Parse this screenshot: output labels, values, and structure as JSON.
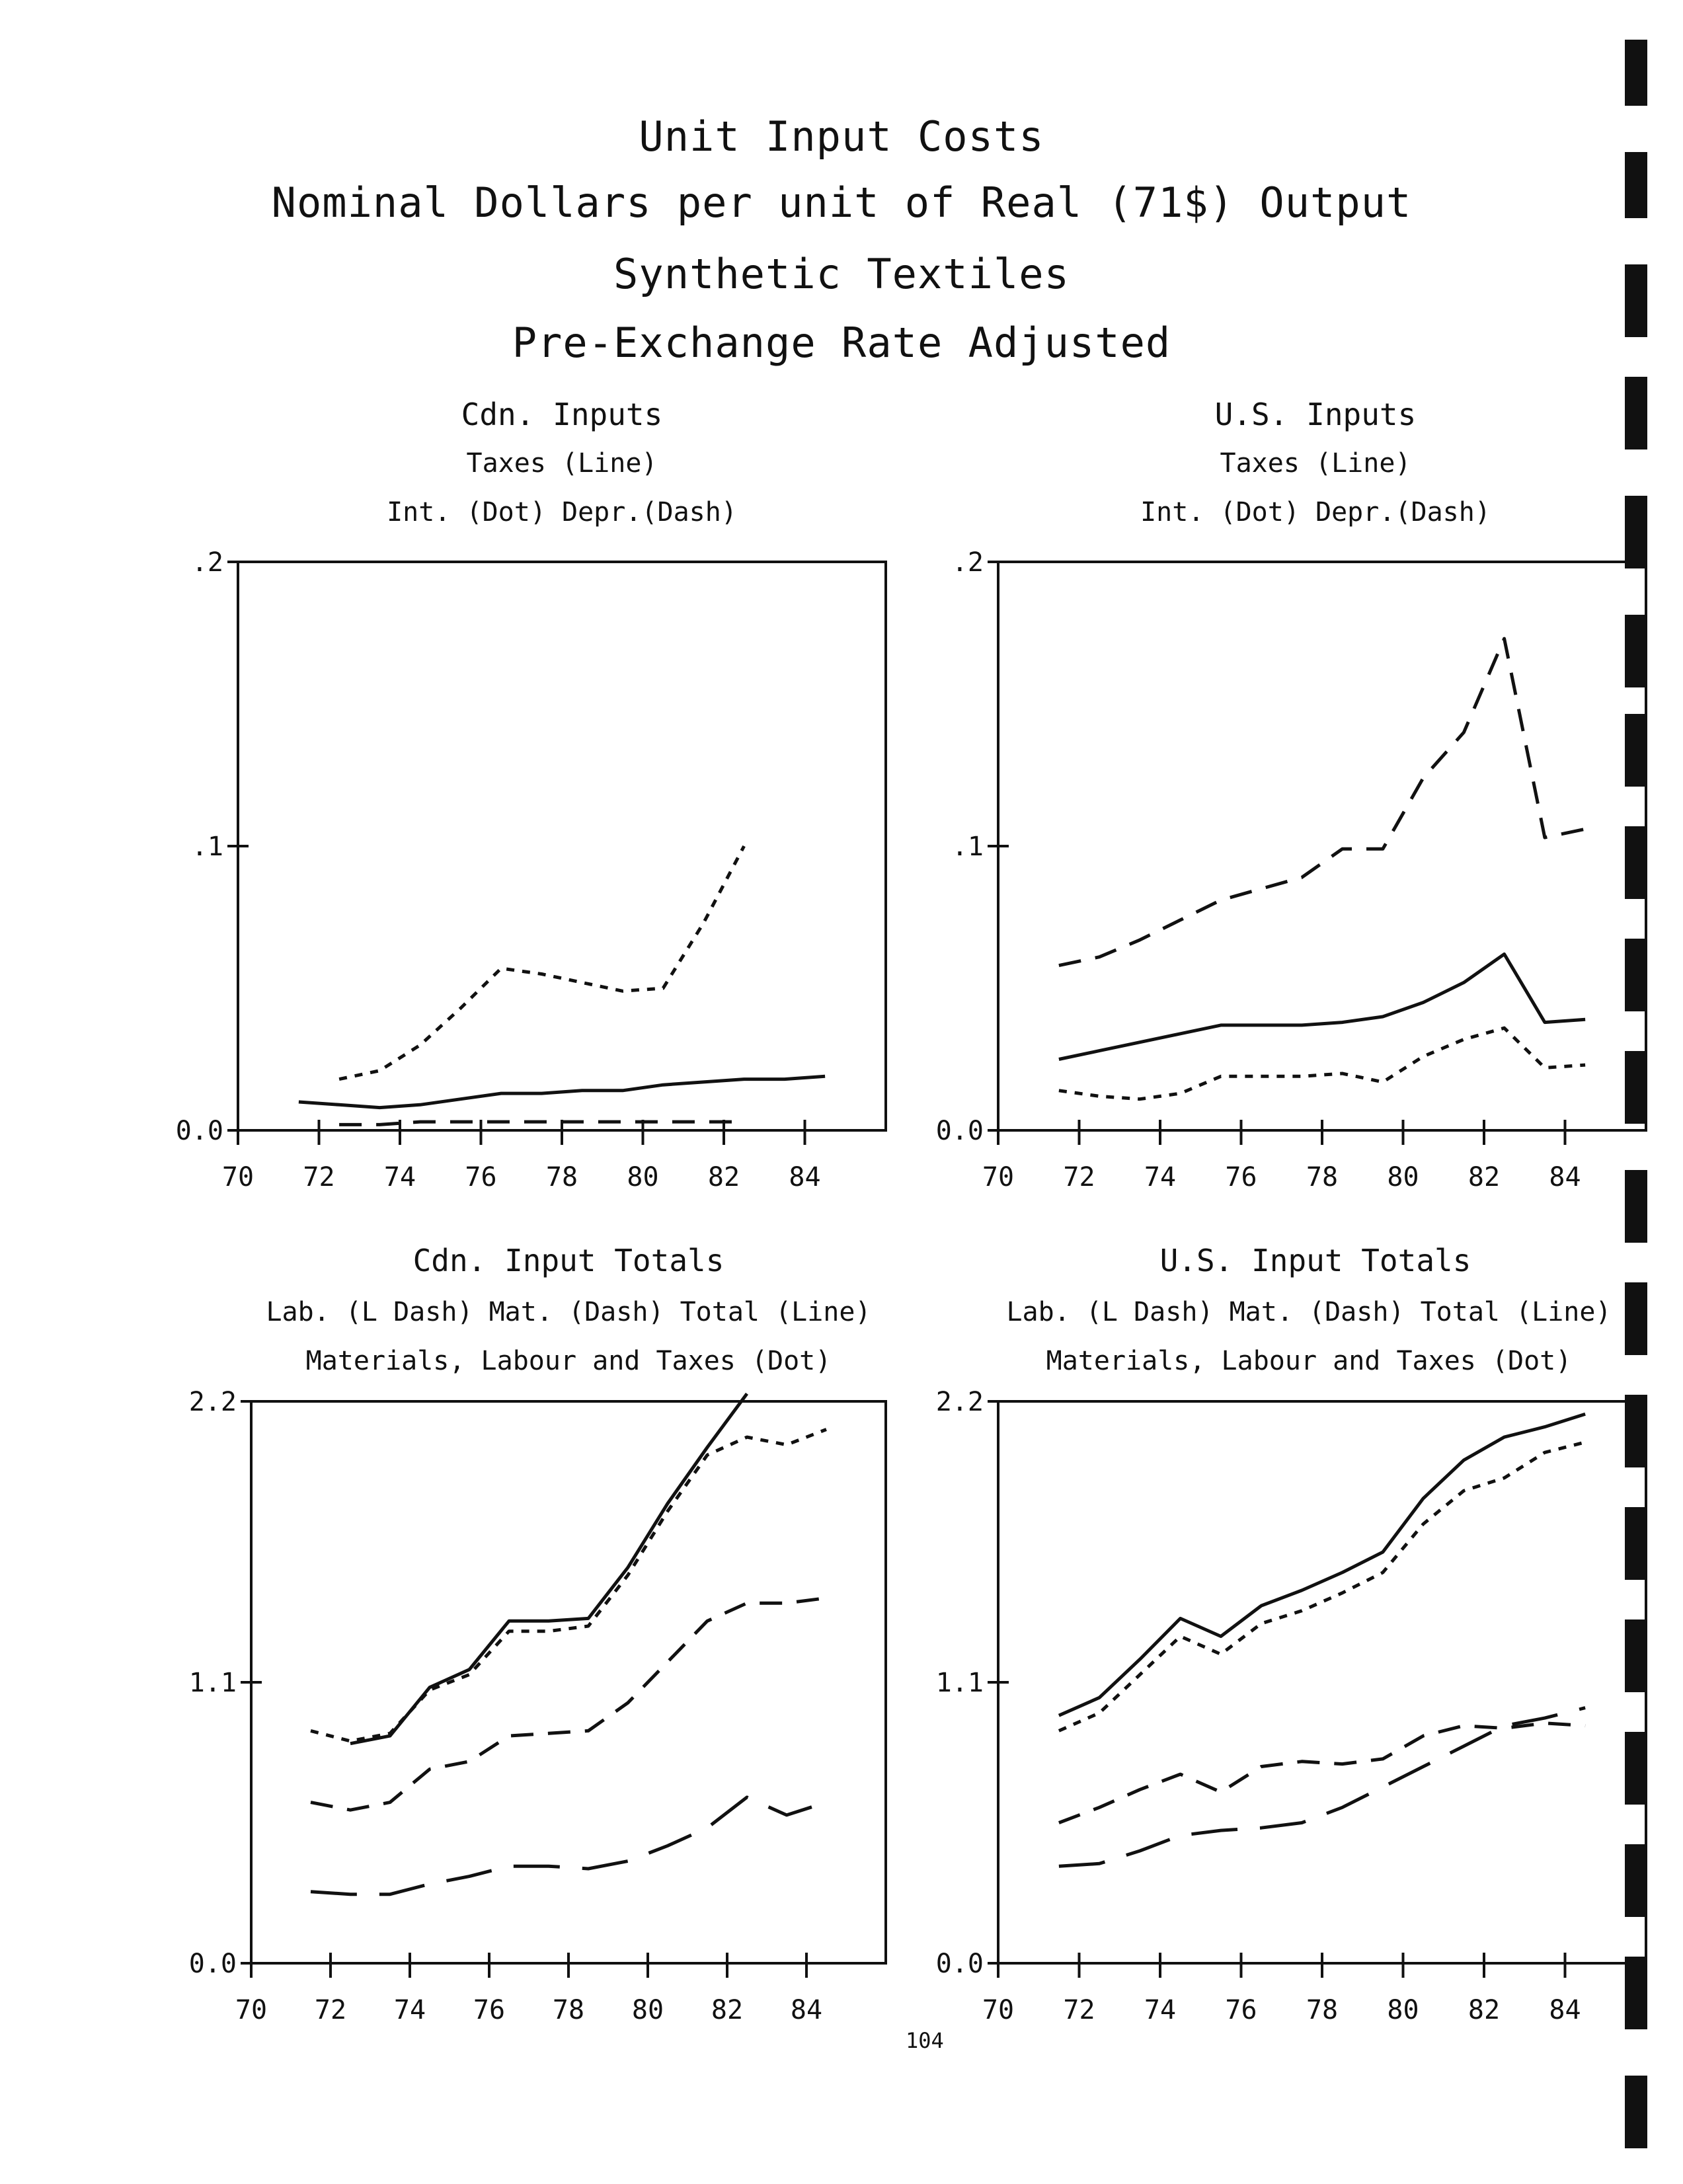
{
  "title_lines": [
    "Unit Input Costs",
    "Nominal Dollars per unit of Real (71$) Output",
    "Synthetic Textiles",
    "Pre-Exchange Rate Adjusted"
  ],
  "page_number": "104",
  "colors": {
    "ink": "#111111",
    "paper": "#ffffff"
  },
  "chart_data": [
    {
      "type": "line",
      "title": "Cdn. Inputs",
      "legend": [
        "Taxes (Line)",
        "Int. (Dot)      Depr.(Dash)"
      ],
      "ylim": [
        0,
        0.2
      ],
      "xlim": [
        70,
        86
      ],
      "y_ticks": [
        0,
        0.1,
        0.2
      ],
      "y_tick_labels": [
        "0.0",
        ".1",
        ".2"
      ],
      "x_ticks": [
        70,
        72,
        74,
        76,
        78,
        80,
        82,
        84
      ],
      "x_tick_labels": [
        "70",
        "72",
        "74",
        "76",
        "78",
        "80",
        "82",
        "84"
      ],
      "series": [
        {
          "name": "Taxes (Line)",
          "style": "solid",
          "x": [
            71.5,
            72.5,
            73.5,
            74.5,
            75.5,
            76.5,
            77.5,
            78.5,
            79.5,
            80.5,
            81.5,
            82.5,
            83.5,
            84.5
          ],
          "y": [
            0.01,
            0.009,
            0.008,
            0.009,
            0.011,
            0.013,
            0.013,
            0.014,
            0.014,
            0.016,
            0.017,
            0.018,
            0.018,
            0.019
          ]
        },
        {
          "name": "Int. (Dot)",
          "style": "dot",
          "x": [
            72.5,
            73.5,
            74.5,
            75.5,
            76.5,
            77.5,
            78.5,
            79.5,
            80.5,
            81.5,
            82.5
          ],
          "y": [
            0.018,
            0.021,
            0.03,
            0.043,
            0.057,
            0.055,
            0.052,
            0.049,
            0.05,
            0.073,
            0.1
          ]
        },
        {
          "name": "Depr.(Dash)",
          "style": "dash",
          "x": [
            72.5,
            73.5,
            74.5,
            75.5,
            76.5,
            77.5,
            78.5,
            79.5,
            80.5,
            81.5,
            82.5
          ],
          "y": [
            0.002,
            0.002,
            0.003,
            0.003,
            0.003,
            0.003,
            0.003,
            0.003,
            0.003,
            0.003,
            0.003
          ]
        }
      ]
    },
    {
      "type": "line",
      "title": "U.S. Inputs",
      "legend": [
        "Taxes (Line)",
        "Int. (Dot)      Depr.(Dash)"
      ],
      "ylim": [
        0,
        0.2
      ],
      "xlim": [
        70,
        86
      ],
      "y_ticks": [
        0,
        0.1,
        0.2
      ],
      "y_tick_labels": [
        "0.0",
        ".1",
        ".2"
      ],
      "x_ticks": [
        70,
        72,
        74,
        76,
        78,
        80,
        82,
        84
      ],
      "x_tick_labels": [
        "70",
        "72",
        "74",
        "76",
        "78",
        "80",
        "82",
        "84"
      ],
      "series": [
        {
          "name": "Taxes (Line)",
          "style": "solid",
          "x": [
            71.5,
            72.5,
            73.5,
            74.5,
            75.5,
            76.5,
            77.5,
            78.5,
            79.5,
            80.5,
            81.5,
            82.5,
            83.5,
            84.5
          ],
          "y": [
            0.025,
            0.028,
            0.031,
            0.034,
            0.037,
            0.037,
            0.037,
            0.038,
            0.04,
            0.045,
            0.052,
            0.062,
            0.038,
            0.039
          ]
        },
        {
          "name": "Int. (Dot)",
          "style": "dot",
          "x": [
            71.5,
            72.5,
            73.5,
            74.5,
            75.5,
            76.5,
            77.5,
            78.5,
            79.5,
            80.5,
            81.5,
            82.5,
            83.5,
            84.5
          ],
          "y": [
            0.014,
            0.012,
            0.011,
            0.013,
            0.019,
            0.019,
            0.019,
            0.02,
            0.017,
            0.026,
            0.032,
            0.036,
            0.022,
            0.023
          ]
        },
        {
          "name": "Depr.(Dash)",
          "style": "dash",
          "x": [
            71.5,
            72.5,
            73.5,
            74.5,
            75.5,
            76.5,
            77.5,
            78.5,
            79.5,
            80.5,
            81.5,
            82.5,
            83.5,
            84.5
          ],
          "y": [
            0.058,
            0.061,
            0.067,
            0.074,
            0.081,
            0.085,
            0.089,
            0.099,
            0.099,
            0.124,
            0.14,
            0.173,
            0.103,
            0.106
          ]
        }
      ]
    },
    {
      "type": "line",
      "title": "Cdn. Input Totals",
      "legend": [
        "Lab. (L Dash)     Mat. (Dash)     Total (Line)",
        "Materials, Labour and Taxes (Dot)"
      ],
      "ylim": [
        0,
        2.2
      ],
      "xlim": [
        70,
        86
      ],
      "y_ticks": [
        0,
        1.1,
        2.2
      ],
      "y_tick_labels": [
        "0.0",
        "1.1",
        "2.2"
      ],
      "x_ticks": [
        70,
        72,
        74,
        76,
        78,
        80,
        82,
        84
      ],
      "x_tick_labels": [
        "70",
        "72",
        "74",
        "76",
        "78",
        "80",
        "82",
        "84"
      ],
      "series": [
        {
          "name": "Total (Line)",
          "style": "solid",
          "x": [
            72.5,
            73.5,
            74.5,
            75.5,
            76.5,
            77.5,
            78.5,
            79.5,
            80.5,
            81.5,
            82.5
          ],
          "y": [
            0.86,
            0.89,
            1.08,
            1.15,
            1.34,
            1.34,
            1.35,
            1.55,
            1.8,
            2.02,
            2.23
          ]
        },
        {
          "name": "Materials, Labour and Taxes (Dot)",
          "style": "dot",
          "x": [
            71.5,
            72.5,
            73.5,
            74.5,
            75.5,
            76.5,
            77.5,
            78.5,
            79.5,
            80.5,
            81.5,
            82.5,
            83.5,
            84.5
          ],
          "y": [
            0.91,
            0.87,
            0.9,
            1.07,
            1.13,
            1.3,
            1.3,
            1.32,
            1.52,
            1.77,
            1.99,
            2.06,
            2.03,
            2.09
          ]
        },
        {
          "name": "Mat. (Dash)",
          "style": "dash",
          "x": [
            71.5,
            72.5,
            73.5,
            74.5,
            75.5,
            76.5,
            77.5,
            78.5,
            79.5,
            80.5,
            81.5,
            82.5,
            83.5,
            84.5
          ],
          "y": [
            0.63,
            0.6,
            0.63,
            0.76,
            0.79,
            0.89,
            0.9,
            0.91,
            1.02,
            1.18,
            1.34,
            1.41,
            1.41,
            1.43
          ]
        },
        {
          "name": "Lab. (L Dash)",
          "style": "ldash",
          "x": [
            71.5,
            72.5,
            73.5,
            74.5,
            75.5,
            76.5,
            77.5,
            78.5,
            79.5,
            80.5,
            81.5,
            82.5,
            83.5,
            84.5
          ],
          "y": [
            0.28,
            0.27,
            0.27,
            0.31,
            0.34,
            0.38,
            0.38,
            0.37,
            0.4,
            0.46,
            0.53,
            0.65,
            0.58,
            0.63
          ]
        }
      ]
    },
    {
      "type": "line",
      "title": "U.S. Input Totals",
      "legend": [
        "Lab. (L Dash)     Mat. (Dash)     Total (Line)",
        "Materials, Labour and Taxes (Dot)"
      ],
      "ylim": [
        0,
        2.2
      ],
      "xlim": [
        70,
        86
      ],
      "y_ticks": [
        0,
        1.1,
        2.2
      ],
      "y_tick_labels": [
        "0.0",
        "1.1",
        "2.2"
      ],
      "x_ticks": [
        70,
        72,
        74,
        76,
        78,
        80,
        82,
        84
      ],
      "x_tick_labels": [
        "70",
        "72",
        "74",
        "76",
        "78",
        "80",
        "82",
        "84"
      ],
      "series": [
        {
          "name": "Total (Line)",
          "style": "solid",
          "x": [
            71.5,
            72.5,
            73.5,
            74.5,
            75.5,
            76.5,
            77.5,
            78.5,
            79.5,
            80.5,
            81.5,
            82.5,
            83.5,
            84.5
          ],
          "y": [
            0.97,
            1.04,
            1.19,
            1.35,
            1.28,
            1.4,
            1.46,
            1.53,
            1.61,
            1.82,
            1.97,
            2.06,
            2.1,
            2.15
          ]
        },
        {
          "name": "Materials, Labour and Taxes (Dot)",
          "style": "dot",
          "x": [
            71.5,
            72.5,
            73.5,
            74.5,
            75.5,
            76.5,
            77.5,
            78.5,
            79.5,
            80.5,
            81.5,
            82.5,
            83.5,
            84.5
          ],
          "y": [
            0.91,
            0.98,
            1.13,
            1.28,
            1.21,
            1.33,
            1.38,
            1.45,
            1.53,
            1.72,
            1.85,
            1.9,
            2.0,
            2.04
          ]
        },
        {
          "name": "Mat. (Dash)",
          "style": "dash",
          "x": [
            71.5,
            72.5,
            73.5,
            74.5,
            75.5,
            76.5,
            77.5,
            78.5,
            79.5,
            80.5,
            81.5,
            82.5,
            83.5,
            84.5
          ],
          "y": [
            0.55,
            0.61,
            0.68,
            0.74,
            0.67,
            0.77,
            0.79,
            0.78,
            0.8,
            0.89,
            0.93,
            0.92,
            0.94,
            0.93
          ]
        },
        {
          "name": "Lab. (L Dash)",
          "style": "ldash",
          "x": [
            71.5,
            72.5,
            73.5,
            74.5,
            75.5,
            76.5,
            77.5,
            78.5,
            79.5,
            80.5,
            81.5,
            82.5,
            83.5,
            84.5
          ],
          "y": [
            0.38,
            0.39,
            0.44,
            0.5,
            0.52,
            0.53,
            0.55,
            0.61,
            0.69,
            0.77,
            0.85,
            0.93,
            0.96,
            1.0
          ]
        }
      ]
    }
  ]
}
